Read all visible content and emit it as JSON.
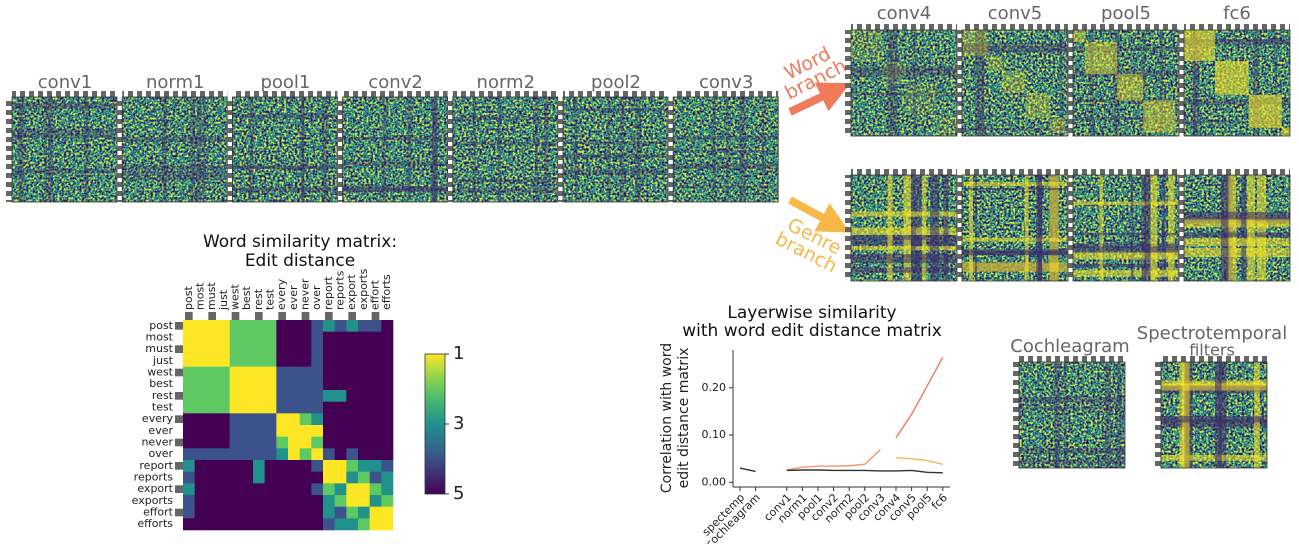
{
  "figure": {
    "shared_layers": [
      "conv1",
      "norm1",
      "pool1",
      "conv2",
      "norm2",
      "pool2",
      "conv3"
    ],
    "branch_layers": [
      "conv4",
      "conv5",
      "pool5",
      "fc6"
    ],
    "word_branch": [
      "Word",
      "branch"
    ],
    "genre_branch": [
      "Genre",
      "branch"
    ],
    "cochleagram": "Cochleagram",
    "spectrotemporal": [
      "Spectrotemporal",
      "filters"
    ]
  },
  "chart_data": [
    {
      "type": "heatmap",
      "title": [
        "Word similarity matrix:",
        "Edit distance"
      ],
      "categories": [
        "post",
        "most",
        "must",
        "just",
        "west",
        "best",
        "rest",
        "test",
        "every",
        "ever",
        "never",
        "over",
        "report",
        "reports",
        "export",
        "exports",
        "effort",
        "efforts"
      ],
      "values": [
        [
          1,
          1,
          1,
          1,
          2,
          2,
          2,
          2,
          5,
          5,
          5,
          4,
          3,
          4,
          3,
          4,
          4,
          5
        ],
        [
          1,
          1,
          1,
          1,
          2,
          2,
          2,
          2,
          5,
          5,
          5,
          4,
          5,
          5,
          5,
          5,
          5,
          5
        ],
        [
          1,
          1,
          1,
          1,
          2,
          2,
          2,
          2,
          5,
          5,
          5,
          4,
          5,
          5,
          5,
          5,
          5,
          5
        ],
        [
          1,
          1,
          1,
          1,
          2,
          2,
          2,
          2,
          5,
          5,
          5,
          4,
          5,
          5,
          5,
          5,
          5,
          5
        ],
        [
          2,
          2,
          2,
          2,
          1,
          1,
          1,
          1,
          4,
          4,
          4,
          4,
          5,
          5,
          5,
          5,
          5,
          5
        ],
        [
          2,
          2,
          2,
          2,
          1,
          1,
          1,
          1,
          4,
          4,
          4,
          4,
          5,
          5,
          5,
          5,
          5,
          5
        ],
        [
          2,
          2,
          2,
          2,
          1,
          1,
          1,
          1,
          4,
          4,
          4,
          4,
          3,
          3,
          5,
          5,
          5,
          5
        ],
        [
          2,
          2,
          2,
          2,
          1,
          1,
          1,
          1,
          4,
          4,
          4,
          4,
          5,
          5,
          5,
          5,
          5,
          5
        ],
        [
          5,
          5,
          5,
          5,
          4,
          4,
          4,
          4,
          1,
          1,
          2,
          3,
          5,
          5,
          5,
          5,
          5,
          5
        ],
        [
          5,
          5,
          5,
          5,
          4,
          4,
          4,
          4,
          1,
          1,
          1,
          1,
          5,
          5,
          5,
          5,
          5,
          5
        ],
        [
          5,
          5,
          5,
          5,
          4,
          4,
          4,
          4,
          2,
          1,
          1,
          2,
          5,
          5,
          5,
          5,
          5,
          5
        ],
        [
          4,
          4,
          4,
          4,
          4,
          4,
          4,
          4,
          3,
          1,
          2,
          1,
          4,
          5,
          4,
          5,
          5,
          5
        ],
        [
          3,
          5,
          5,
          5,
          5,
          5,
          3,
          5,
          5,
          5,
          5,
          4,
          1,
          1,
          2,
          3,
          3,
          4
        ],
        [
          4,
          5,
          5,
          5,
          5,
          5,
          3,
          5,
          5,
          5,
          5,
          5,
          1,
          1,
          3,
          2,
          4,
          3
        ],
        [
          3,
          5,
          5,
          5,
          5,
          5,
          5,
          5,
          5,
          5,
          5,
          4,
          2,
          3,
          1,
          1,
          2,
          3
        ],
        [
          4,
          5,
          5,
          5,
          5,
          5,
          5,
          5,
          5,
          5,
          5,
          5,
          3,
          2,
          1,
          1,
          3,
          2
        ],
        [
          4,
          5,
          5,
          5,
          5,
          5,
          5,
          5,
          5,
          5,
          5,
          5,
          3,
          4,
          2,
          3,
          1,
          1
        ],
        [
          5,
          5,
          5,
          5,
          5,
          5,
          5,
          5,
          5,
          5,
          5,
          5,
          4,
          3,
          3,
          2,
          1,
          1
        ]
      ],
      "cmap": "viridis_r",
      "clim": [
        1,
        5
      ],
      "cticks": [
        1,
        3,
        5
      ]
    },
    {
      "type": "line",
      "title": [
        "Layerwise similarity",
        "with word edit distance matrix"
      ],
      "ylabel": [
        "Correlation with word",
        "edit distance matrix"
      ],
      "categories": [
        "spectemp",
        "cochleagram",
        null,
        "conv1",
        "norm1",
        "pool1",
        "conv2",
        "norm2",
        "pool2",
        "conv3",
        "conv4",
        "conv5",
        "pool5",
        "fc6"
      ],
      "series": [
        {
          "color": "#f4956e",
          "values": [
            null,
            null,
            null,
            0.026,
            0.032,
            0.034,
            0.034,
            0.035,
            0.038,
            0.069,
            null,
            null,
            null,
            null
          ]
        },
        {
          "color": "#f07a5a",
          "values": [
            null,
            null,
            null,
            null,
            null,
            null,
            null,
            null,
            null,
            null,
            0.094,
            0.144,
            0.204,
            0.265
          ]
        },
        {
          "color": "#f7b25a",
          "values": [
            null,
            null,
            null,
            null,
            null,
            null,
            null,
            null,
            null,
            null,
            0.052,
            0.05,
            0.046,
            0.038
          ]
        },
        {
          "color": "#333333",
          "values": [
            0.03,
            0.023,
            null,
            0.025,
            0.026,
            0.026,
            0.025,
            0.025,
            0.025,
            0.024,
            0.024,
            0.025,
            0.021,
            0.02
          ]
        }
      ],
      "ylim": [
        -0.01,
        0.28
      ],
      "yticks": [
        {
          "value": 0,
          "label": "0.00"
        },
        {
          "value": 0.1,
          "label": "0.10"
        },
        {
          "value": 0.2,
          "label": "0.20"
        }
      ]
    }
  ]
}
